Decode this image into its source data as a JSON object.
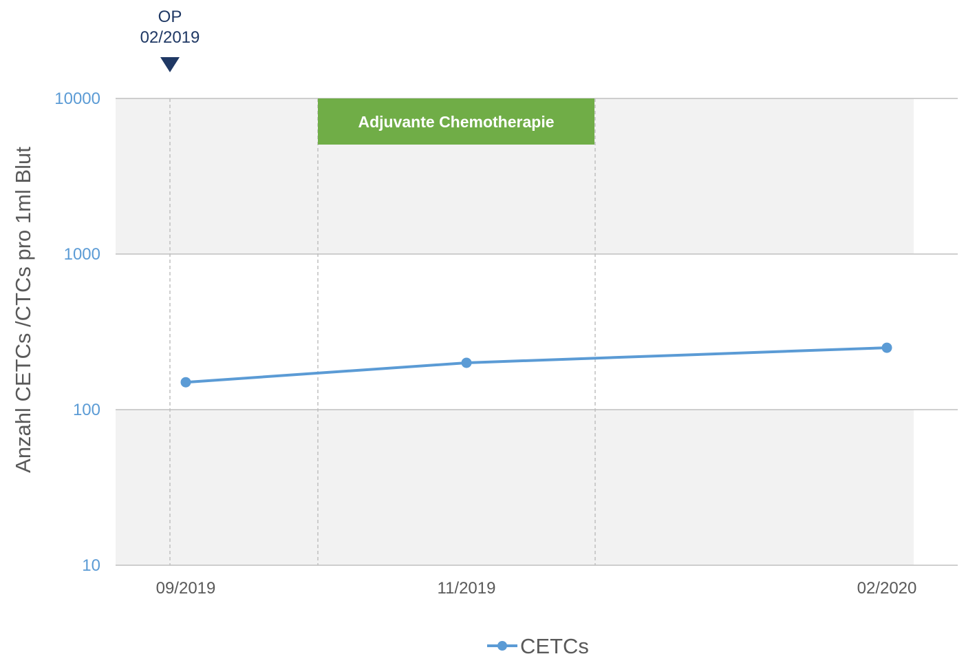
{
  "chart_data": {
    "type": "line",
    "ylabel": "Anzahl CETCs /CTCs pro 1ml Blut",
    "yscale": "log",
    "ylim": [
      10,
      10000
    ],
    "yticks": [
      10,
      100,
      1000,
      10000
    ],
    "ytick_labels": [
      "10",
      "100",
      "1000",
      "10000"
    ],
    "categories": [
      "09/2019",
      "11/2019",
      "02/2020"
    ],
    "series": [
      {
        "name": "CETCs",
        "values": [
          150,
          200,
          250
        ],
        "color": "#5b9bd5"
      }
    ],
    "annotations": {
      "op": {
        "line1": "OP",
        "line2": "02/2019",
        "color": "#1f3864"
      },
      "therapy_band": {
        "label": "Adjuvante Chemotherapie",
        "color": "#70ad47"
      }
    },
    "grid": true,
    "legend": {
      "position": "bottom-center"
    },
    "colors": {
      "axis_text": "#5b9bd5",
      "label_text": "#595959",
      "plot_bg": "#f2f2f2"
    }
  }
}
